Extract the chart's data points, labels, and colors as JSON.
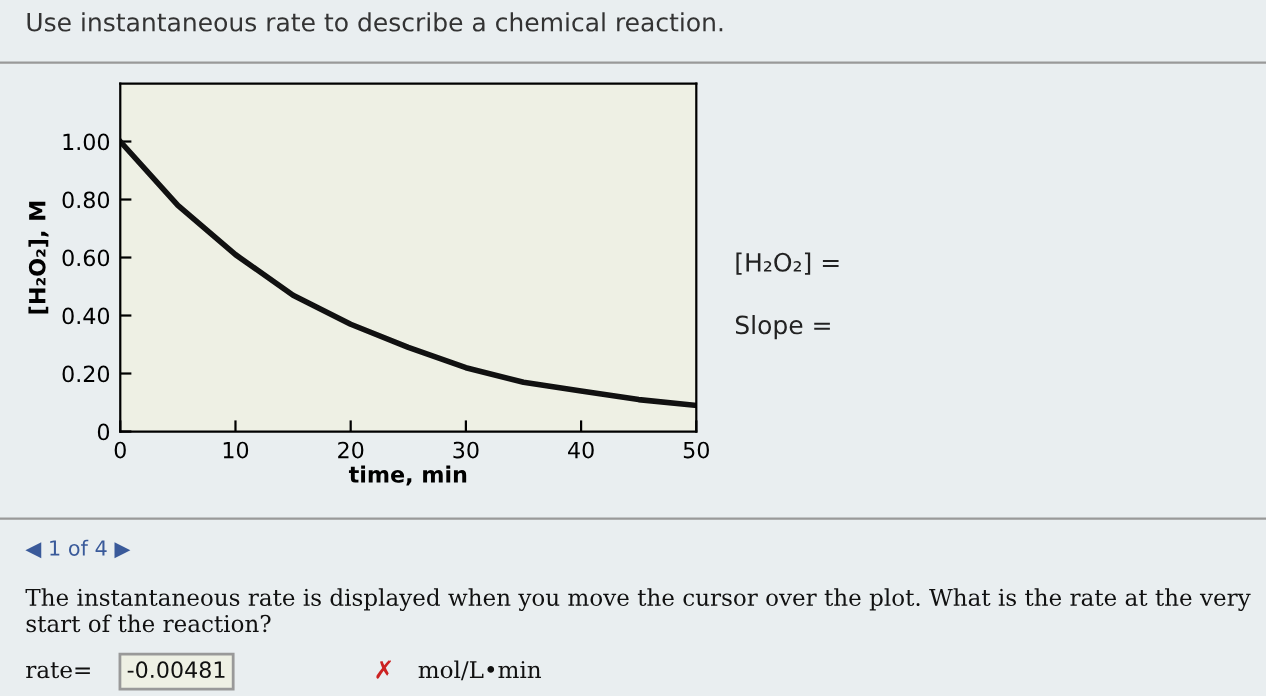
{
  "chart_data": {
    "type": "line",
    "title": "Use instantaneous rate to describe a chemical reaction.",
    "xlabel": "time, min",
    "ylabel": "[H₂O₂], M",
    "x": [
      0,
      5,
      10,
      15,
      20,
      25,
      30,
      35,
      40,
      45,
      50
    ],
    "series": [
      {
        "color": "#111111",
        "values": [
          1.0,
          0.78,
          0.61,
          0.47,
          0.37,
          0.29,
          0.22,
          0.17,
          0.14,
          0.11,
          0.09
        ]
      }
    ],
    "xlim": [
      0,
      50
    ],
    "xticks": [
      0,
      10,
      20,
      30,
      40,
      50
    ],
    "ylim": [
      0,
      1.2
    ],
    "yticks": [
      0,
      {
        "value": 0.2,
        "label": "0.20"
      },
      {
        "value": 0.4,
        "label": "0.40"
      },
      {
        "value": 0.6,
        "label": "0.60"
      },
      {
        "value": 0.8,
        "label": "0.80"
      },
      {
        "value": 1.0,
        "label": "1.00"
      }
    ],
    "grid": false,
    "legend": false,
    "marker": "none",
    "line_style": "solid",
    "annotations": [
      "[H₂O₂] =",
      "Slope =",
      "◀ 1 of 4 ▶",
      "The instantaneous rate is displayed when you move the cursor over the plot. What is the rate at the very start of the reaction?",
      "rate=",
      "-0.00481",
      "✗",
      "mol/L•min"
    ]
  }
}
